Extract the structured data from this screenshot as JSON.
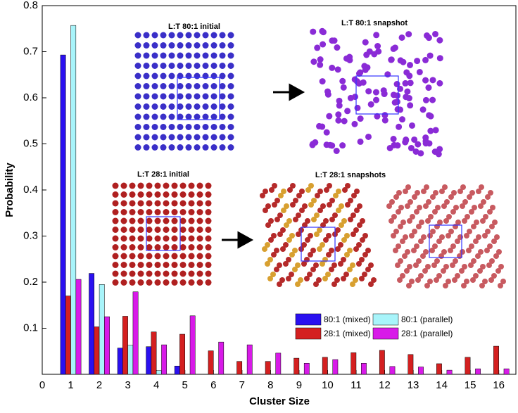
{
  "chart_data": {
    "type": "bar",
    "xlabel": "Cluster Size",
    "ylabel": "Probability",
    "x": [
      1,
      2,
      3,
      4,
      5,
      6,
      7,
      8,
      9,
      10,
      11,
      12,
      13,
      14,
      15,
      16
    ],
    "series": [
      {
        "name": "80:1 (mixed)",
        "color": "#2a10f0",
        "values": [
          0.693,
          0.219,
          0.057,
          0.06,
          0.018,
          0,
          0,
          0,
          0,
          0,
          0,
          0,
          0,
          0,
          0,
          0
        ]
      },
      {
        "name": "28:1 (mixed)",
        "color": "#d42020",
        "values": [
          0.17,
          0.103,
          0.126,
          0.092,
          0.087,
          0.051,
          0.028,
          0.028,
          0.035,
          0.037,
          0.047,
          0.052,
          0.043,
          0.023,
          0.037,
          0.061
        ]
      },
      {
        "name": "80:1 (parallel)",
        "color": "#a8f4fa",
        "values": [
          0.757,
          0.195,
          0.063,
          0.008,
          0,
          0,
          0,
          0,
          0,
          0,
          0,
          0,
          0,
          0,
          0,
          0
        ]
      },
      {
        "name": "28:1 (parallel)",
        "color": "#d81ae8",
        "values": [
          0.206,
          0.125,
          0.179,
          0.064,
          0.127,
          0.07,
          0.064,
          0.046,
          0.024,
          0.032,
          0.024,
          0.017,
          0.016,
          0.009,
          0.012,
          0.012
        ]
      }
    ],
    "xlim": [
      0,
      16.6
    ],
    "xticks": [
      0,
      1,
      2,
      3,
      4,
      5,
      6,
      7,
      8,
      9,
      10,
      11,
      12,
      13,
      14,
      15,
      16
    ],
    "ylim": [
      0,
      0.8
    ],
    "yticks": [
      0.1,
      0.2,
      0.3,
      0.4,
      0.5,
      0.6,
      0.7,
      0.8
    ],
    "legend": "lower right",
    "annotations": [
      "L:T 80:1 initial",
      "L:T 80:1 snapshot",
      "L:T 28:1 initial",
      "L:T 28:1 snapshots"
    ]
  }
}
